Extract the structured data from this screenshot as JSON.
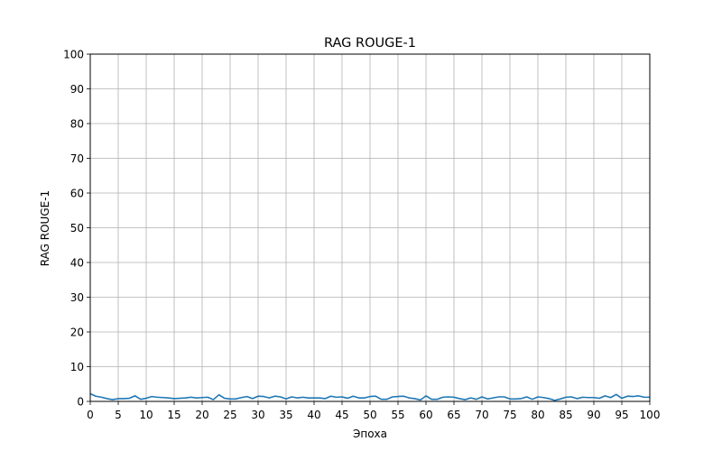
{
  "chart_data": {
    "type": "line",
    "title": "RAG ROUGE-1",
    "xlabel": "Эпоха",
    "ylabel": "RAG ROUGE-1",
    "xlim": [
      0,
      100
    ],
    "ylim": [
      0,
      100
    ],
    "xticks": [
      0,
      5,
      10,
      15,
      20,
      25,
      30,
      35,
      40,
      45,
      50,
      55,
      60,
      65,
      70,
      75,
      80,
      85,
      90,
      95,
      100
    ],
    "yticks": [
      0,
      10,
      20,
      30,
      40,
      50,
      60,
      70,
      80,
      90,
      100
    ],
    "grid": true,
    "line_color": "#1f77b4",
    "series": [
      {
        "x": [
          0,
          1,
          2,
          3,
          4,
          5,
          6,
          7,
          8,
          9,
          10,
          11,
          12,
          13,
          14,
          15,
          16,
          17,
          18,
          19,
          20,
          21,
          22,
          23,
          24,
          25,
          26,
          27,
          28,
          29,
          30,
          31,
          32,
          33,
          34,
          35,
          36,
          37,
          38,
          39,
          40,
          41,
          42,
          43,
          44,
          45,
          46,
          47,
          48,
          49,
          50,
          51,
          52,
          53,
          54,
          55,
          56,
          57,
          58,
          59,
          60,
          61,
          62,
          63,
          64,
          65,
          66,
          67,
          68,
          69,
          70,
          71,
          72,
          73,
          74,
          75,
          76,
          77,
          78,
          79,
          80,
          81,
          82,
          83,
          84,
          85,
          86,
          87,
          88,
          89,
          90,
          91,
          92,
          93,
          94,
          95,
          96,
          97,
          98,
          99,
          100
        ],
        "values": [
          2.2,
          1.5,
          1.2,
          0.8,
          0.5,
          0.8,
          0.8,
          0.9,
          1.6,
          0.6,
          0.9,
          1.4,
          1.2,
          1.1,
          1.0,
          0.8,
          0.9,
          1.0,
          1.2,
          1.0,
          1.1,
          1.2,
          0.5,
          1.9,
          0.9,
          0.7,
          0.7,
          1.1,
          1.4,
          0.8,
          1.5,
          1.4,
          1.0,
          1.5,
          1.3,
          0.7,
          1.3,
          1.0,
          1.2,
          1.0,
          1.0,
          1.0,
          0.8,
          1.5,
          1.2,
          1.3,
          0.9,
          1.5,
          1.0,
          1.0,
          1.4,
          1.5,
          0.6,
          0.6,
          1.3,
          1.4,
          1.5,
          1.0,
          0.8,
          0.4,
          1.6,
          0.6,
          0.6,
          1.2,
          1.3,
          1.2,
          0.8,
          0.5,
          1.0,
          0.6,
          1.3,
          0.7,
          1.0,
          1.3,
          1.3,
          0.7,
          0.7,
          0.8,
          1.3,
          0.6,
          1.3,
          1.1,
          0.8,
          0.3,
          0.7,
          1.2,
          1.3,
          0.8,
          1.2,
          1.1,
          1.1,
          0.9,
          1.6,
          1.1,
          2.0,
          0.9,
          1.5,
          1.4,
          1.6,
          1.2,
          1.2
        ]
      }
    ]
  }
}
